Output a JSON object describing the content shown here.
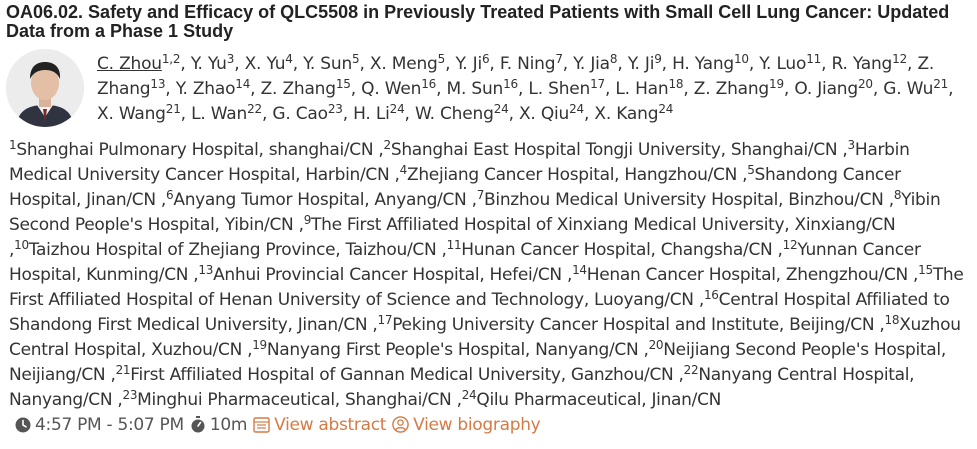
{
  "session": {
    "title": "OA06.02. Safety and Efficacy of QLC5508 in Previously Treated Patients with Small Cell Lung Cancer: Updated Data from a Phase 1 Study"
  },
  "authors": [
    {
      "name": "C. Zhou",
      "aff": "1,2"
    },
    {
      "name": "Y. Yu",
      "aff": "3"
    },
    {
      "name": "X. Yu",
      "aff": "4"
    },
    {
      "name": "Y. Sun",
      "aff": "5"
    },
    {
      "name": "X. Meng",
      "aff": "5"
    },
    {
      "name": "Y. Ji",
      "aff": "6"
    },
    {
      "name": "F. Ning",
      "aff": "7"
    },
    {
      "name": "Y. Jia",
      "aff": "8"
    },
    {
      "name": "Y. Ji",
      "aff": "9"
    },
    {
      "name": "H. Yang",
      "aff": "10"
    },
    {
      "name": "Y. Luo",
      "aff": "11"
    },
    {
      "name": "R. Yang",
      "aff": "12"
    },
    {
      "name": "Z. Zhang",
      "aff": "13"
    },
    {
      "name": "Y. Zhao",
      "aff": "14"
    },
    {
      "name": "Z. Zhang",
      "aff": "15"
    },
    {
      "name": "Q. Wen",
      "aff": "16"
    },
    {
      "name": "M. Sun",
      "aff": "16"
    },
    {
      "name": "L. Shen",
      "aff": "17"
    },
    {
      "name": "L. Han",
      "aff": "18"
    },
    {
      "name": "Z. Zhang",
      "aff": "19"
    },
    {
      "name": "O. Jiang",
      "aff": "20"
    },
    {
      "name": "G. Wu",
      "aff": "21"
    },
    {
      "name": "X. Wang",
      "aff": "21"
    },
    {
      "name": "L. Wan",
      "aff": "22"
    },
    {
      "name": "G. Cao",
      "aff": "23"
    },
    {
      "name": "H. Li",
      "aff": "24"
    },
    {
      "name": "W. Cheng",
      "aff": "24"
    },
    {
      "name": "X. Qiu",
      "aff": "24"
    },
    {
      "name": "X. Kang",
      "aff": "24"
    }
  ],
  "affiliations": [
    {
      "num": "1",
      "text": "Shanghai Pulmonary Hospital, shanghai/CN"
    },
    {
      "num": "2",
      "text": "Shanghai East Hospital Tongji University, Shanghai/CN"
    },
    {
      "num": "3",
      "text": "Harbin Medical University Cancer Hospital, Harbin/CN"
    },
    {
      "num": "4",
      "text": "Zhejiang Cancer Hospital, Hangzhou/CN"
    },
    {
      "num": "5",
      "text": "Shandong Cancer Hospital, Jinan/CN"
    },
    {
      "num": "6",
      "text": "Anyang Tumor Hospital, Anyang/CN"
    },
    {
      "num": "7",
      "text": "Binzhou Medical University Hospital, Binzhou/CN"
    },
    {
      "num": "8",
      "text": "Yibin Second People's Hospital, Yibin/CN"
    },
    {
      "num": "9",
      "text": "The First Affiliated Hospital of Xinxiang Medical University, Xinxiang/CN"
    },
    {
      "num": "10",
      "text": "Taizhou Hospital of Zhejiang Province, Taizhou/CN"
    },
    {
      "num": "11",
      "text": "Hunan Cancer Hospital, Changsha/CN"
    },
    {
      "num": "12",
      "text": "Yunnan Cancer Hospital, Kunming/CN"
    },
    {
      "num": "13",
      "text": "Anhui Provincial Cancer Hospital, Hefei/CN"
    },
    {
      "num": "14",
      "text": "Henan Cancer Hospital, Zhengzhou/CN"
    },
    {
      "num": "15",
      "text": "The First Affiliated Hospital of Henan University of Science and Technology, Luoyang/CN"
    },
    {
      "num": "16",
      "text": "Central Hospital Affiliated to Shandong First Medical University, Jinan/CN"
    },
    {
      "num": "17",
      "text": "Peking University Cancer Hospital and Institute, Beijing/CN"
    },
    {
      "num": "18",
      "text": "Xuzhou Central Hospital, Xuzhou/CN"
    },
    {
      "num": "19",
      "text": "Nanyang First People's Hospital, Nanyang/CN"
    },
    {
      "num": "20",
      "text": "Neijiang Second People's Hospital, Neijiang/CN"
    },
    {
      "num": "21",
      "text": "First Affiliated Hospital of Gannan Medical University, Ganzhou/CN"
    },
    {
      "num": "22",
      "text": "Nanyang Central Hospital, Nanyang/CN"
    },
    {
      "num": "23",
      "text": "Minghui Pharmaceutical, Shanghai/CN"
    },
    {
      "num": "24",
      "text": "Qilu Pharmaceutical, Jinan/CN"
    }
  ],
  "meta": {
    "time_range": "4:57 PM - 5:07 PM",
    "duration": "10m",
    "view_abstract_label": "View abstract",
    "view_biography_label": "View biography",
    "accent_color": "#d67a45",
    "icons": {
      "time": "clock-icon",
      "duration": "stopwatch-icon",
      "abstract": "document-icon",
      "biography": "user-circle-icon"
    }
  },
  "speaker": {
    "photo_icon": "speaker-photo"
  }
}
